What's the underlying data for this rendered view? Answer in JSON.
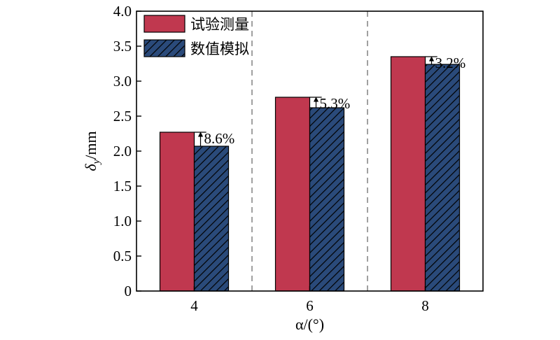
{
  "chart_data": {
    "type": "bar",
    "categories": [
      "4",
      "6",
      "8"
    ],
    "series": [
      {
        "name": "试验测量",
        "values": [
          2.27,
          2.77,
          3.35
        ],
        "color": "#c0384f",
        "pattern": "solid"
      },
      {
        "name": "数值模拟",
        "values": [
          2.07,
          2.62,
          3.24
        ],
        "color": "#2a4a7a",
        "pattern": "hatch"
      }
    ],
    "annotations": [
      "8.6%",
      "5.3%",
      "3.2%"
    ],
    "xlabel": "α/(°)",
    "ylabel_main": "δ",
    "ylabel_sub": "y",
    "ylabel_unit": "/mm",
    "ylim": [
      0,
      4.0
    ],
    "yticks": [
      "0",
      "0.5",
      "1.0",
      "1.5",
      "2.0",
      "2.5",
      "3.0",
      "3.5",
      "4.0"
    ],
    "grid": false,
    "separators": "dashed vertical lines between categories",
    "legend_position": "top-left"
  }
}
